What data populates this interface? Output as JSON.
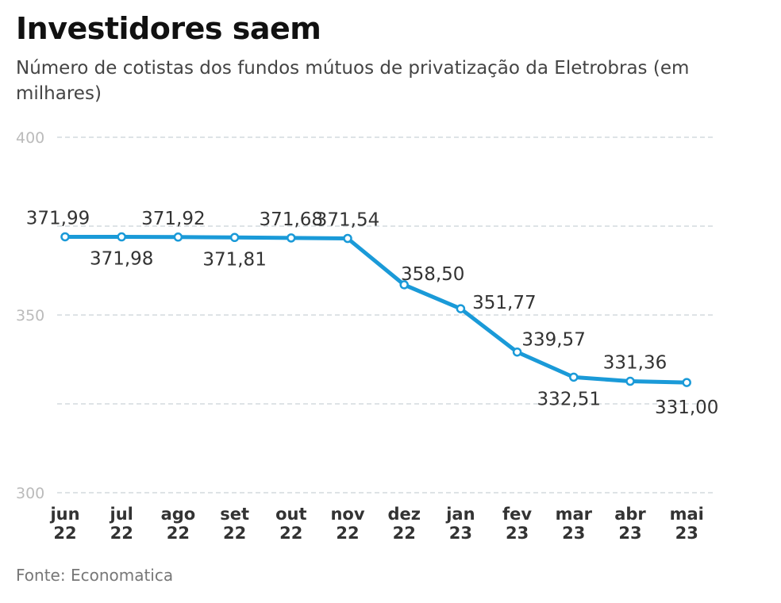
{
  "chart_data": {
    "type": "line",
    "title": "Investidores saem",
    "subtitle": "Número de cotistas dos fundos mútuos de privatização da Eletrobras (em milhares)",
    "source": "Fonte: Economatica",
    "categories": [
      [
        "jun",
        "22"
      ],
      [
        "jul",
        "22"
      ],
      [
        "ago",
        "22"
      ],
      [
        "set",
        "22"
      ],
      [
        "out",
        "22"
      ],
      [
        "nov",
        "22"
      ],
      [
        "dez",
        "22"
      ],
      [
        "jan",
        "23"
      ],
      [
        "fev",
        "23"
      ],
      [
        "mar",
        "23"
      ],
      [
        "abr",
        "23"
      ],
      [
        "mai",
        "23"
      ]
    ],
    "values": [
      371.99,
      371.98,
      371.92,
      371.81,
      371.68,
      371.54,
      358.5,
      351.77,
      339.57,
      332.51,
      331.36,
      331.0
    ],
    "data_labels": [
      "371,99",
      "371,98",
      "371,92",
      "371,81",
      "371,68",
      "371,54",
      "358,50",
      "351,77",
      "339,57",
      "332,51",
      "331,36",
      "331,00"
    ],
    "ylim": [
      300,
      400
    ],
    "yticks": [
      "300",
      "350",
      "400"
    ],
    "gridlines": [
      300,
      325,
      350,
      375,
      400
    ],
    "grid": true,
    "line_color": "#1a9ad8",
    "gridline_color": "#c9d2d8"
  }
}
